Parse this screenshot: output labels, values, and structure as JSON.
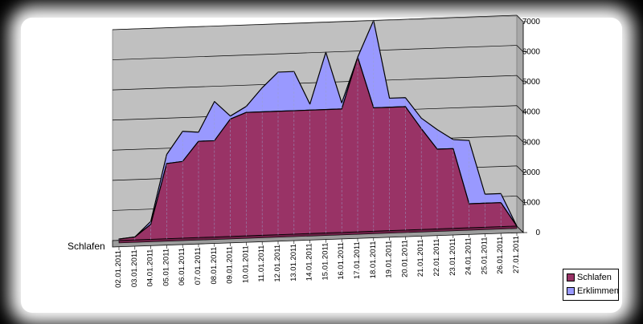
{
  "chart_data": {
    "type": "area",
    "subtype": "3d-stacked-area",
    "categories": [
      "02.01.2011",
      "03.01.2011",
      "04.01.2011",
      "05.01.2011",
      "06.01.2011",
      "07.01.2011",
      "08.01.2011",
      "09.01.2011",
      "10.01.2011",
      "11.01.2011",
      "12.01.2011",
      "13.01.2011",
      "14.01.2011",
      "15.01.2011",
      "16.01.2011",
      "17.01.2011",
      "18.01.2011",
      "19.01.2011",
      "20.01.2011",
      "21.01.2011",
      "22.01.2011",
      "23.01.2011",
      "24.01.2011",
      "25.01.2011",
      "26.01.2011",
      "27.01.2011"
    ],
    "series": [
      {
        "name": "Schlafen",
        "color": "#993366",
        "values": [
          50,
          100,
          500,
          2500,
          2550,
          3200,
          3200,
          3900,
          4100,
          4100,
          4100,
          4100,
          4100,
          4100,
          4100,
          5800,
          4100,
          4100,
          4100,
          3350,
          2650,
          2650,
          800,
          800,
          800,
          0
        ]
      },
      {
        "name": "Erklimmen",
        "color": "#9999ff",
        "values": [
          0,
          0,
          100,
          300,
          1000,
          300,
          1300,
          100,
          200,
          800,
          1300,
          1300,
          200,
          1900,
          200,
          0,
          2900,
          300,
          300,
          350,
          650,
          300,
          2100,
          300,
          300,
          0
        ]
      }
    ],
    "depth_axis_label": "Schlafen",
    "ylim": [
      0,
      7000
    ],
    "yticks": [
      0,
      1000,
      2000,
      3000,
      4000,
      5000,
      6000,
      7000
    ],
    "grid": true,
    "legend_position": "bottom-right"
  },
  "legend": {
    "items": [
      {
        "label": "Schlafen",
        "color": "#993366"
      },
      {
        "label": "Erklimmen",
        "color": "#9999ff"
      }
    ]
  }
}
